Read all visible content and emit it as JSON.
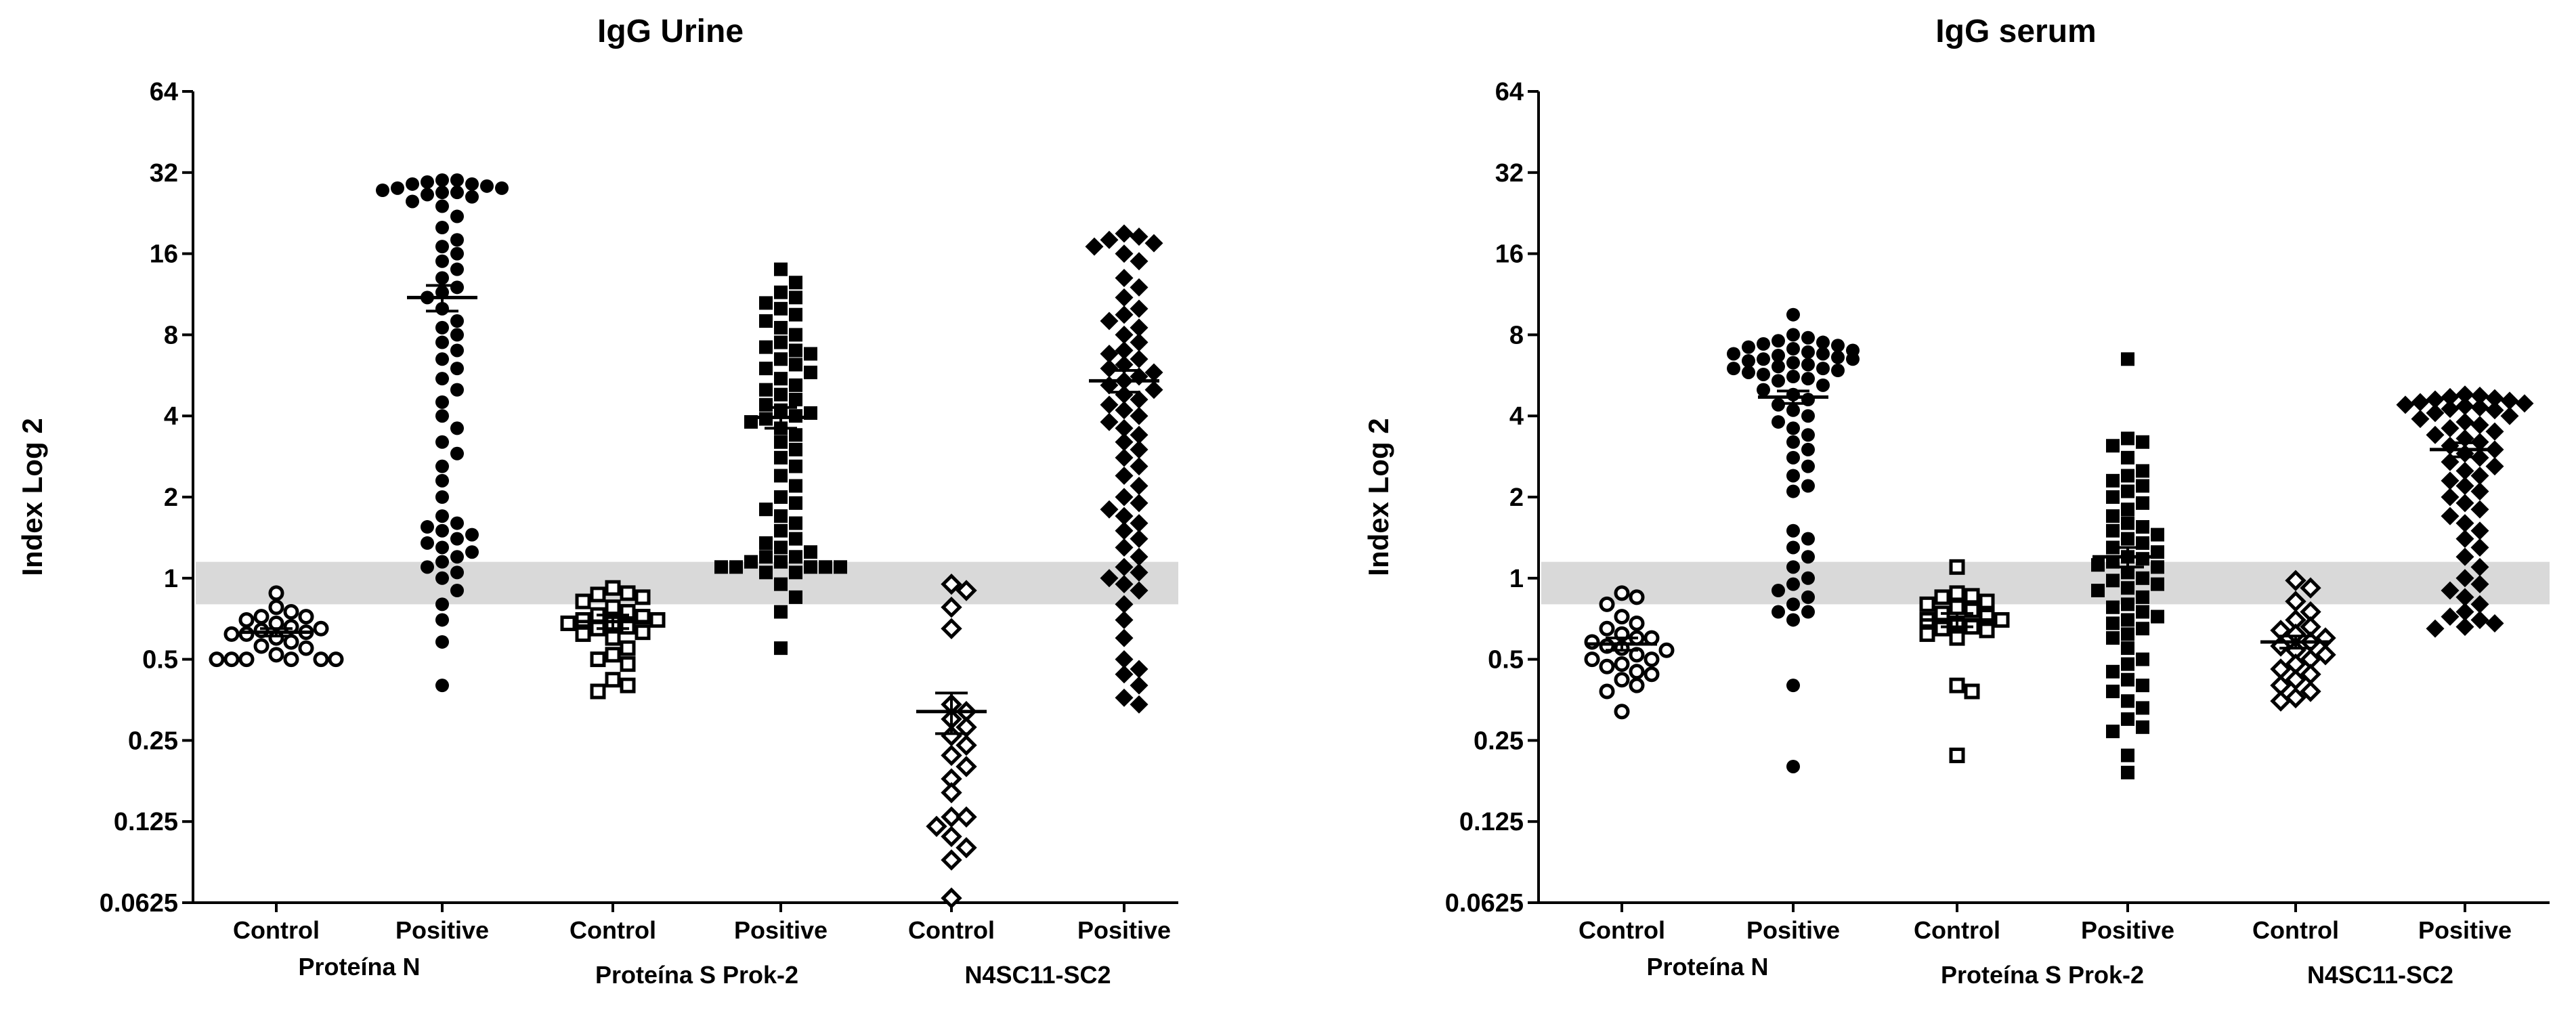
{
  "chart_data": [
    {
      "type": "scatter",
      "title": "IgG Urine",
      "ylabel": "Index Log 2",
      "yscale": "log2",
      "ylim": [
        0.0625,
        64
      ],
      "yticks": [
        "0.0625",
        "0.125",
        "0.25",
        "0.5",
        "1",
        "2",
        "4",
        "8",
        "16",
        "32",
        "64"
      ],
      "cutoff_band": [
        0.8,
        1.15
      ],
      "categories": [
        "Control",
        "Positive",
        "Control",
        "Positive",
        "Control",
        "Positive"
      ],
      "groups": [
        {
          "label": "Proteína N",
          "categories": [
            0,
            1
          ]
        },
        {
          "label": "Proteína S Prok-2",
          "categories": [
            2,
            3
          ]
        },
        {
          "label": "N4SC11-SC2",
          "categories": [
            4,
            5
          ]
        }
      ],
      "series": [
        {
          "marker": "circle-open",
          "mean": 0.63,
          "sem": 0.02,
          "values": [
            0.88,
            0.78,
            0.75,
            0.72,
            0.72,
            0.7,
            0.68,
            0.66,
            0.65,
            0.64,
            0.63,
            0.62,
            0.62,
            0.6,
            0.58,
            0.56,
            0.55,
            0.52,
            0.5,
            0.5,
            0.5,
            0.5,
            0.5,
            0.5
          ]
        },
        {
          "marker": "circle",
          "mean": 11.0,
          "sem": 1.2,
          "values": [
            30,
            30,
            29.5,
            29,
            29,
            28.5,
            28,
            28,
            27.5,
            27,
            27,
            26.5,
            26,
            25,
            24,
            22,
            20,
            18,
            17,
            16,
            15,
            14,
            13,
            12,
            11.5,
            11,
            10,
            9,
            8.5,
            8,
            7.5,
            7,
            6.5,
            6,
            5.5,
            5,
            4.5,
            4,
            3.6,
            3.2,
            2.9,
            2.6,
            2.3,
            2.0,
            1.7,
            1.6,
            1.55,
            1.5,
            1.45,
            1.4,
            1.35,
            1.3,
            1.25,
            1.2,
            1.15,
            1.1,
            1.05,
            1.0,
            0.9,
            0.8,
            0.7,
            0.58,
            0.4
          ]
        },
        {
          "marker": "square-open",
          "mean": 0.69,
          "sem": 0.04,
          "values": [
            0.92,
            0.88,
            0.87,
            0.85,
            0.82,
            0.78,
            0.75,
            0.73,
            0.72,
            0.7,
            0.7,
            0.68,
            0.68,
            0.66,
            0.65,
            0.63,
            0.62,
            0.6,
            0.55,
            0.52,
            0.5,
            0.48,
            0.42,
            0.4,
            0.38
          ]
        },
        {
          "marker": "square",
          "mean": 3.95,
          "sem": 0.35,
          "values": [
            14,
            12.5,
            11.5,
            11,
            10.5,
            10,
            9.5,
            9,
            8.5,
            8,
            7.5,
            7.2,
            7,
            6.8,
            6.5,
            6.2,
            6,
            5.8,
            5.5,
            5.2,
            5,
            4.8,
            4.6,
            4.4,
            4.2,
            4.1,
            4,
            3.9,
            3.8,
            3.6,
            3.4,
            3.2,
            3,
            2.8,
            2.6,
            2.4,
            2.2,
            2,
            1.9,
            1.8,
            1.7,
            1.6,
            1.5,
            1.4,
            1.35,
            1.3,
            1.25,
            1.2,
            1.2,
            1.15,
            1.15,
            1.1,
            1.1,
            1.1,
            1.1,
            1.1,
            1.05,
            1.05,
            0.95,
            0.85,
            0.75,
            0.55
          ]
        },
        {
          "marker": "diamond-open",
          "mean": 0.32,
          "sem": 0.055,
          "values": [
            0.95,
            0.9,
            0.78,
            0.65,
            0.34,
            0.32,
            0.3,
            0.28,
            0.26,
            0.24,
            0.22,
            0.2,
            0.18,
            0.16,
            0.13,
            0.13,
            0.12,
            0.11,
            0.1,
            0.09,
            0.065
          ]
        },
        {
          "marker": "diamond",
          "mean": 5.4,
          "sem": 0.5,
          "values": [
            19,
            18.5,
            18,
            17.5,
            17,
            16,
            15,
            13,
            12,
            11,
            10,
            9.5,
            9,
            8.5,
            8,
            7.5,
            7,
            6.8,
            6.5,
            6.2,
            6,
            5.8,
            5.6,
            5.4,
            5.2,
            5,
            4.8,
            4.6,
            4.4,
            4.2,
            4,
            3.8,
            3.6,
            3.4,
            3.2,
            3,
            2.8,
            2.6,
            2.4,
            2.2,
            2,
            1.9,
            1.8,
            1.7,
            1.6,
            1.5,
            1.4,
            1.3,
            1.2,
            1.1,
            1.05,
            1,
            0.95,
            0.9,
            0.8,
            0.7,
            0.6,
            0.5,
            0.46,
            0.44,
            0.4,
            0.36,
            0.34
          ]
        }
      ]
    },
    {
      "type": "scatter",
      "title": "IgG serum",
      "ylabel": "Index Log 2",
      "yscale": "log2",
      "ylim": [
        0.0625,
        64
      ],
      "yticks": [
        "0.0625",
        "0.125",
        "0.25",
        "0.5",
        "1",
        "2",
        "4",
        "8",
        "16",
        "32",
        "64"
      ],
      "cutoff_band": [
        0.8,
        1.15
      ],
      "categories": [
        "Control",
        "Positive",
        "Control",
        "Positive",
        "Control",
        "Positive"
      ],
      "groups": [
        {
          "label": "Proteína N",
          "categories": [
            0,
            1
          ]
        },
        {
          "label": "Proteína S Prok-2",
          "categories": [
            2,
            3
          ]
        },
        {
          "label": "N4SC11-SC2",
          "categories": [
            4,
            5
          ]
        }
      ],
      "series": [
        {
          "marker": "circle-open",
          "mean": 0.57,
          "sem": 0.03,
          "values": [
            0.88,
            0.85,
            0.8,
            0.72,
            0.68,
            0.65,
            0.62,
            0.6,
            0.6,
            0.58,
            0.56,
            0.55,
            0.54,
            0.52,
            0.5,
            0.5,
            0.48,
            0.47,
            0.45,
            0.44,
            0.42,
            0.4,
            0.38,
            0.32
          ]
        },
        {
          "marker": "circle",
          "mean": 4.7,
          "sem": 0.25,
          "values": [
            9.5,
            8,
            7.8,
            7.6,
            7.5,
            7.4,
            7.3,
            7.2,
            7.1,
            7,
            6.9,
            6.8,
            6.8,
            6.7,
            6.6,
            6.5,
            6.5,
            6.4,
            6.3,
            6.2,
            6.1,
            6,
            6,
            5.9,
            5.8,
            5.7,
            5.6,
            5.5,
            5.4,
            5.2,
            5,
            4.8,
            4.6,
            4.4,
            4.2,
            4,
            3.8,
            3.6,
            3.4,
            3.2,
            3,
            2.8,
            2.6,
            2.4,
            2.2,
            2.1,
            1.5,
            1.4,
            1.3,
            1.2,
            1.1,
            1.0,
            0.95,
            0.9,
            0.85,
            0.8,
            0.75,
            0.75,
            0.7,
            0.4,
            0.2
          ]
        },
        {
          "marker": "square-open",
          "mean": 0.7,
          "sem": 0.04,
          "values": [
            1.1,
            0.88,
            0.86,
            0.85,
            0.82,
            0.8,
            0.78,
            0.76,
            0.74,
            0.72,
            0.7,
            0.7,
            0.68,
            0.66,
            0.65,
            0.64,
            0.62,
            0.6,
            0.4,
            0.38,
            0.22
          ]
        },
        {
          "marker": "square",
          "mean": 1.2,
          "sem": 0.1,
          "values": [
            6.5,
            3.3,
            3.2,
            3.1,
            2.8,
            2.5,
            2.4,
            2.3,
            2.2,
            2.1,
            2,
            1.9,
            1.8,
            1.7,
            1.6,
            1.55,
            1.5,
            1.45,
            1.4,
            1.35,
            1.3,
            1.25,
            1.2,
            1.18,
            1.15,
            1.12,
            1.1,
            1.05,
            1,
            0.98,
            0.95,
            0.92,
            0.9,
            0.85,
            0.8,
            0.78,
            0.75,
            0.72,
            0.7,
            0.68,
            0.65,
            0.62,
            0.6,
            0.55,
            0.5,
            0.48,
            0.45,
            0.42,
            0.4,
            0.38,
            0.35,
            0.33,
            0.3,
            0.28,
            0.27,
            0.22,
            0.19
          ]
        },
        {
          "marker": "diamond-open",
          "mean": 0.58,
          "sem": 0.03,
          "values": [
            0.98,
            0.92,
            0.82,
            0.75,
            0.7,
            0.66,
            0.64,
            0.62,
            0.6,
            0.58,
            0.56,
            0.54,
            0.52,
            0.5,
            0.48,
            0.46,
            0.44,
            0.42,
            0.4,
            0.38,
            0.36,
            0.35
          ]
        },
        {
          "marker": "diamond",
          "mean": 3.0,
          "sem": 0.18,
          "values": [
            4.8,
            4.75,
            4.7,
            4.65,
            4.6,
            4.55,
            4.5,
            4.45,
            4.4,
            4.35,
            4.3,
            4.25,
            4.2,
            4.1,
            4,
            3.9,
            3.8,
            3.7,
            3.6,
            3.5,
            3.4,
            3.3,
            3.2,
            3.1,
            3,
            2.9,
            2.8,
            2.7,
            2.6,
            2.5,
            2.4,
            2.3,
            2.2,
            2.1,
            2,
            1.9,
            1.8,
            1.7,
            1.6,
            1.5,
            1.4,
            1.3,
            1.2,
            1.1,
            1,
            0.95,
            0.9,
            0.85,
            0.8,
            0.75,
            0.72,
            0.7,
            0.68,
            0.66,
            0.65
          ]
        }
      ]
    }
  ]
}
